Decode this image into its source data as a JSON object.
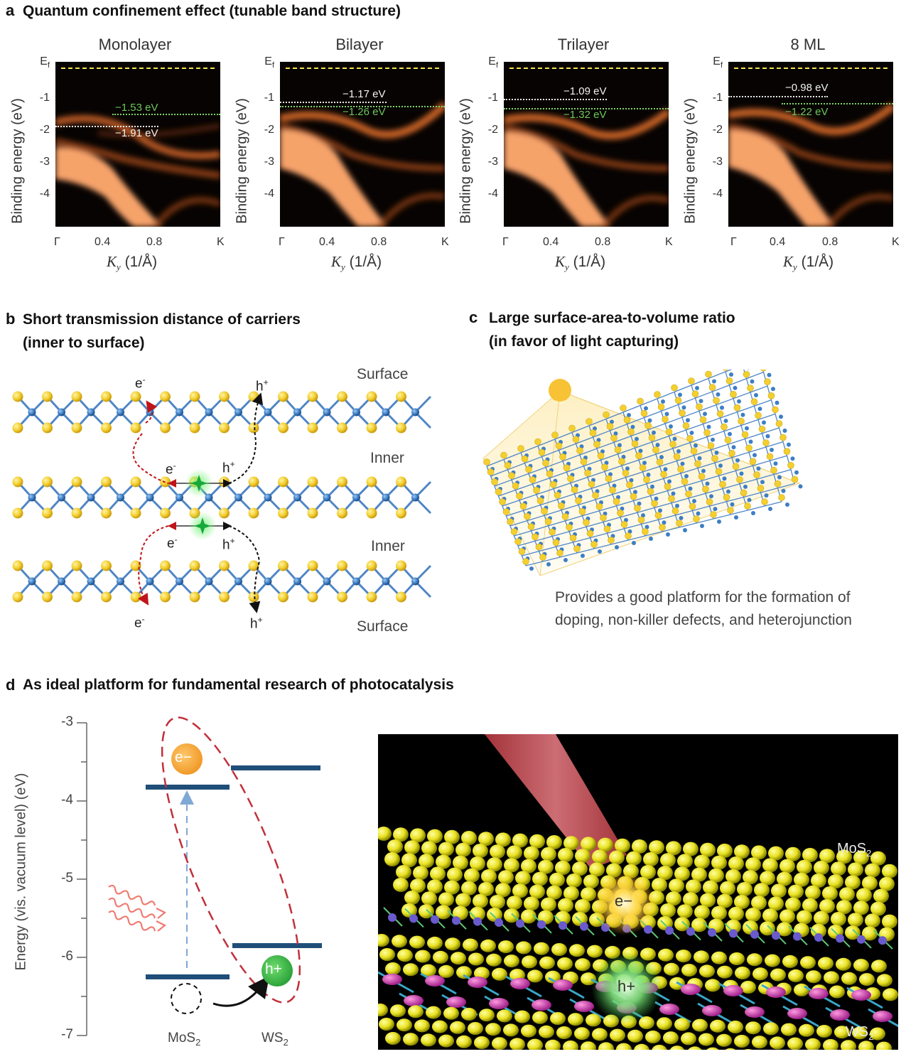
{
  "panel_a": {
    "label": "a",
    "title": "Quantum confinement effect (tunable band structure)",
    "ylabel": "Binding energy (eV)",
    "xlabel": "(1/Å)",
    "xlabel_symbol": "K",
    "xlabel_sub": "y",
    "ef_label": "E",
    "ef_sub": "f",
    "yticks": [
      "-1",
      "-2",
      "-3",
      "-4"
    ],
    "xticks": [
      "Γ",
      "0.4",
      "0.8",
      "K"
    ],
    "plots": [
      {
        "name": "Monolayer",
        "white_label": "−1.91 eV",
        "green_label": "−1.53 eV",
        "white_value": -1.91,
        "green_value": -1.53
      },
      {
        "name": "Bilayer",
        "white_label": "−1.17 eV",
        "green_label": "−1.26 eV",
        "white_value": -1.17,
        "green_value": -1.26
      },
      {
        "name": "Trilayer",
        "white_label": "−1.09 eV",
        "green_label": "−1.32 eV",
        "white_value": -1.09,
        "green_value": -1.32
      },
      {
        "name": "8 ML",
        "white_label": "−0.98 eV",
        "green_label": "−1.22 eV",
        "white_value": -0.98,
        "green_value": -1.22
      }
    ]
  },
  "panel_b": {
    "label": "b",
    "title_line1": "Short transmission distance of carriers",
    "title_line2": "(inner to surface)",
    "layer_surface_top": "Surface",
    "layer_inner_1": "Inner",
    "layer_inner_2": "Inner",
    "layer_surface_bottom": "Surface",
    "electron": "e",
    "hole": "h",
    "minus": "-",
    "plus": "+"
  },
  "panel_c": {
    "label": "c",
    "title_line1": "Large surface-area-to-volume ratio",
    "title_line2": "(in favor of light capturing)",
    "caption_line1": "Provides a good platform for the formation of",
    "caption_line2": "doping, non-killer defects, and heterojunction"
  },
  "panel_d": {
    "label": "d",
    "title": "As ideal platform for fundamental research of photocatalysis",
    "ylabel": "Energy (vis. vacuum level) (eV)",
    "yticks": [
      "-3",
      "-4",
      "-5",
      "-6",
      "-7"
    ],
    "electron_label": "e−",
    "hole_label": "h+",
    "material_1": "MoS",
    "material_2": "WS",
    "subscript": "2",
    "render_electron": "e−",
    "render_hole": "h+",
    "render_top": "MoS",
    "render_bottom": "WS"
  },
  "colors": {
    "band_orange": "#f6a36a",
    "ef_yellow": "#f3e54a",
    "green_text": "#6cc85a",
    "sulfur_yellow": "#f3cf2f",
    "metal_blue": "#3d7ec4",
    "level_navy": "#1f4e79",
    "ellipse_red": "#c0303a",
    "electron_orange": "#f4a03a",
    "hole_green": "#3cb94a"
  }
}
